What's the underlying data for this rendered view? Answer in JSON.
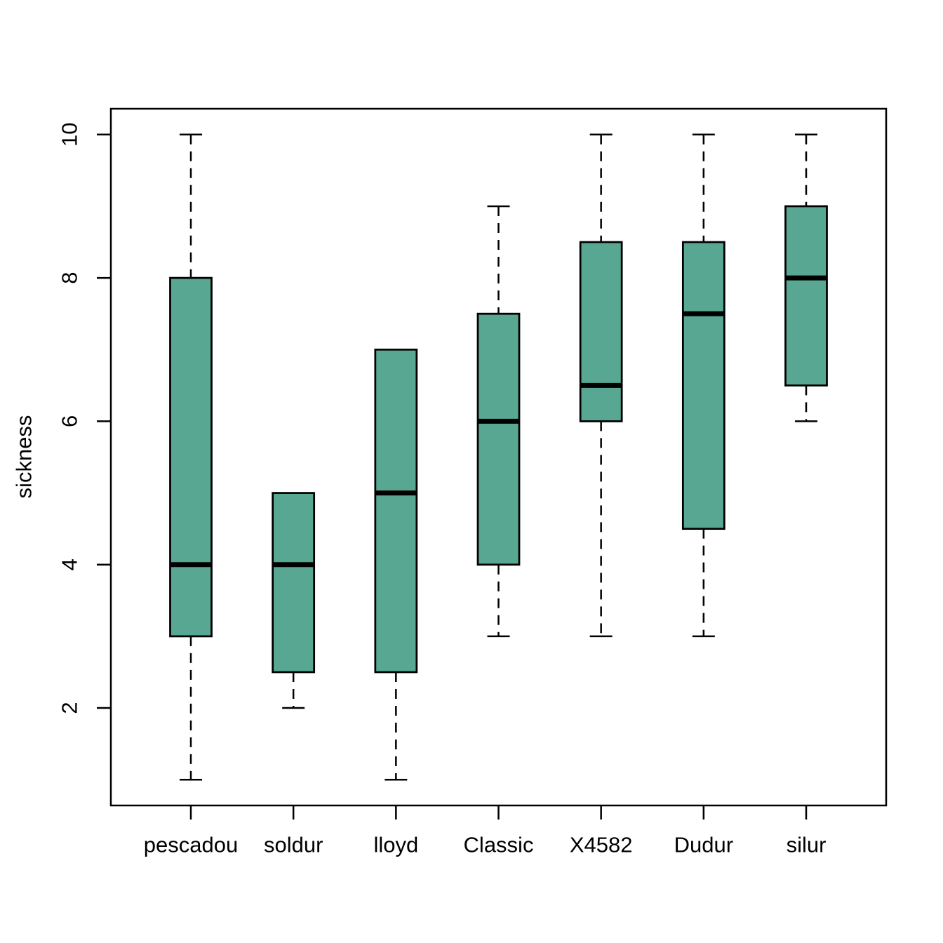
{
  "chart_data": {
    "type": "boxplot",
    "title": "",
    "xlabel": "",
    "ylabel": "sickness",
    "categories": [
      "pescadou",
      "soldur",
      "lloyd",
      "Classic",
      "X4582",
      "Dudur",
      "silur"
    ],
    "series": [
      {
        "name": "pescadou",
        "whisker_low": 1,
        "q1": 3,
        "median": 4,
        "q3": 8,
        "whisker_high": 10
      },
      {
        "name": "soldur",
        "whisker_low": 2,
        "q1": 2.5,
        "median": 4,
        "q3": 5,
        "whisker_high": 5
      },
      {
        "name": "lloyd",
        "whisker_low": 1,
        "q1": 2.5,
        "median": 5,
        "q3": 7,
        "whisker_high": 7
      },
      {
        "name": "Classic",
        "whisker_low": 3,
        "q1": 4,
        "median": 6,
        "q3": 7.5,
        "whisker_high": 9
      },
      {
        "name": "X4582",
        "whisker_low": 3,
        "q1": 6,
        "median": 6.5,
        "q3": 8.5,
        "whisker_high": 10
      },
      {
        "name": "Dudur",
        "whisker_low": 3,
        "q1": 4.5,
        "median": 7.5,
        "q3": 8.5,
        "whisker_high": 10
      },
      {
        "name": "silur",
        "whisker_low": 6,
        "q1": 6.5,
        "median": 8,
        "q3": 9,
        "whisker_high": 10
      }
    ],
    "y_ticks": [
      2,
      4,
      6,
      8,
      10
    ],
    "ylim": [
      0.64,
      10.36
    ],
    "grid": false,
    "legend": false,
    "whisker_style": "dashed",
    "colors": {
      "box_fill": "#57a793",
      "box_border": "#000000",
      "median": "#000000",
      "axis": "#000000",
      "background": "#ffffff"
    }
  }
}
